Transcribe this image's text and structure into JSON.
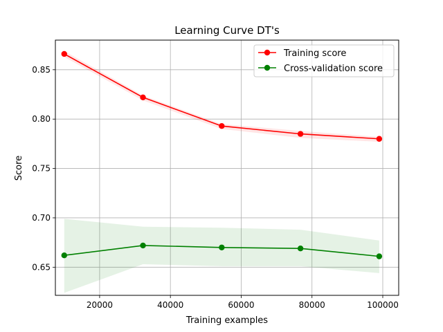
{
  "chart_data": {
    "type": "line",
    "title": "Learning Curve DT's",
    "xlabel": "Training examples",
    "ylabel": "Score",
    "xlim": [
      7500,
      104500
    ],
    "ylim": [
      0.6215,
      0.88
    ],
    "grid": true,
    "legend_position": "top-right",
    "x": [
      10000,
      32250,
      54500,
      76750,
      99000
    ],
    "xticks": [
      20000,
      40000,
      60000,
      80000,
      100000
    ],
    "yticks": [
      0.65,
      0.7,
      0.75,
      0.8,
      0.85
    ],
    "series": [
      {
        "name": "Training score",
        "color": "#ff0000",
        "values": [
          0.866,
          0.822,
          0.793,
          0.785,
          0.78
        ],
        "band_upper": [
          0.869,
          0.824,
          0.795,
          0.788,
          0.782
        ],
        "band_lower": [
          0.863,
          0.819,
          0.79,
          0.781,
          0.777
        ]
      },
      {
        "name": "Cross-validation score",
        "color": "#008000",
        "values": [
          0.662,
          0.672,
          0.67,
          0.669,
          0.661
        ],
        "band_upper": [
          0.699,
          0.691,
          0.69,
          0.688,
          0.677
        ],
        "band_lower": [
          0.624,
          0.653,
          0.651,
          0.651,
          0.644
        ]
      }
    ]
  }
}
